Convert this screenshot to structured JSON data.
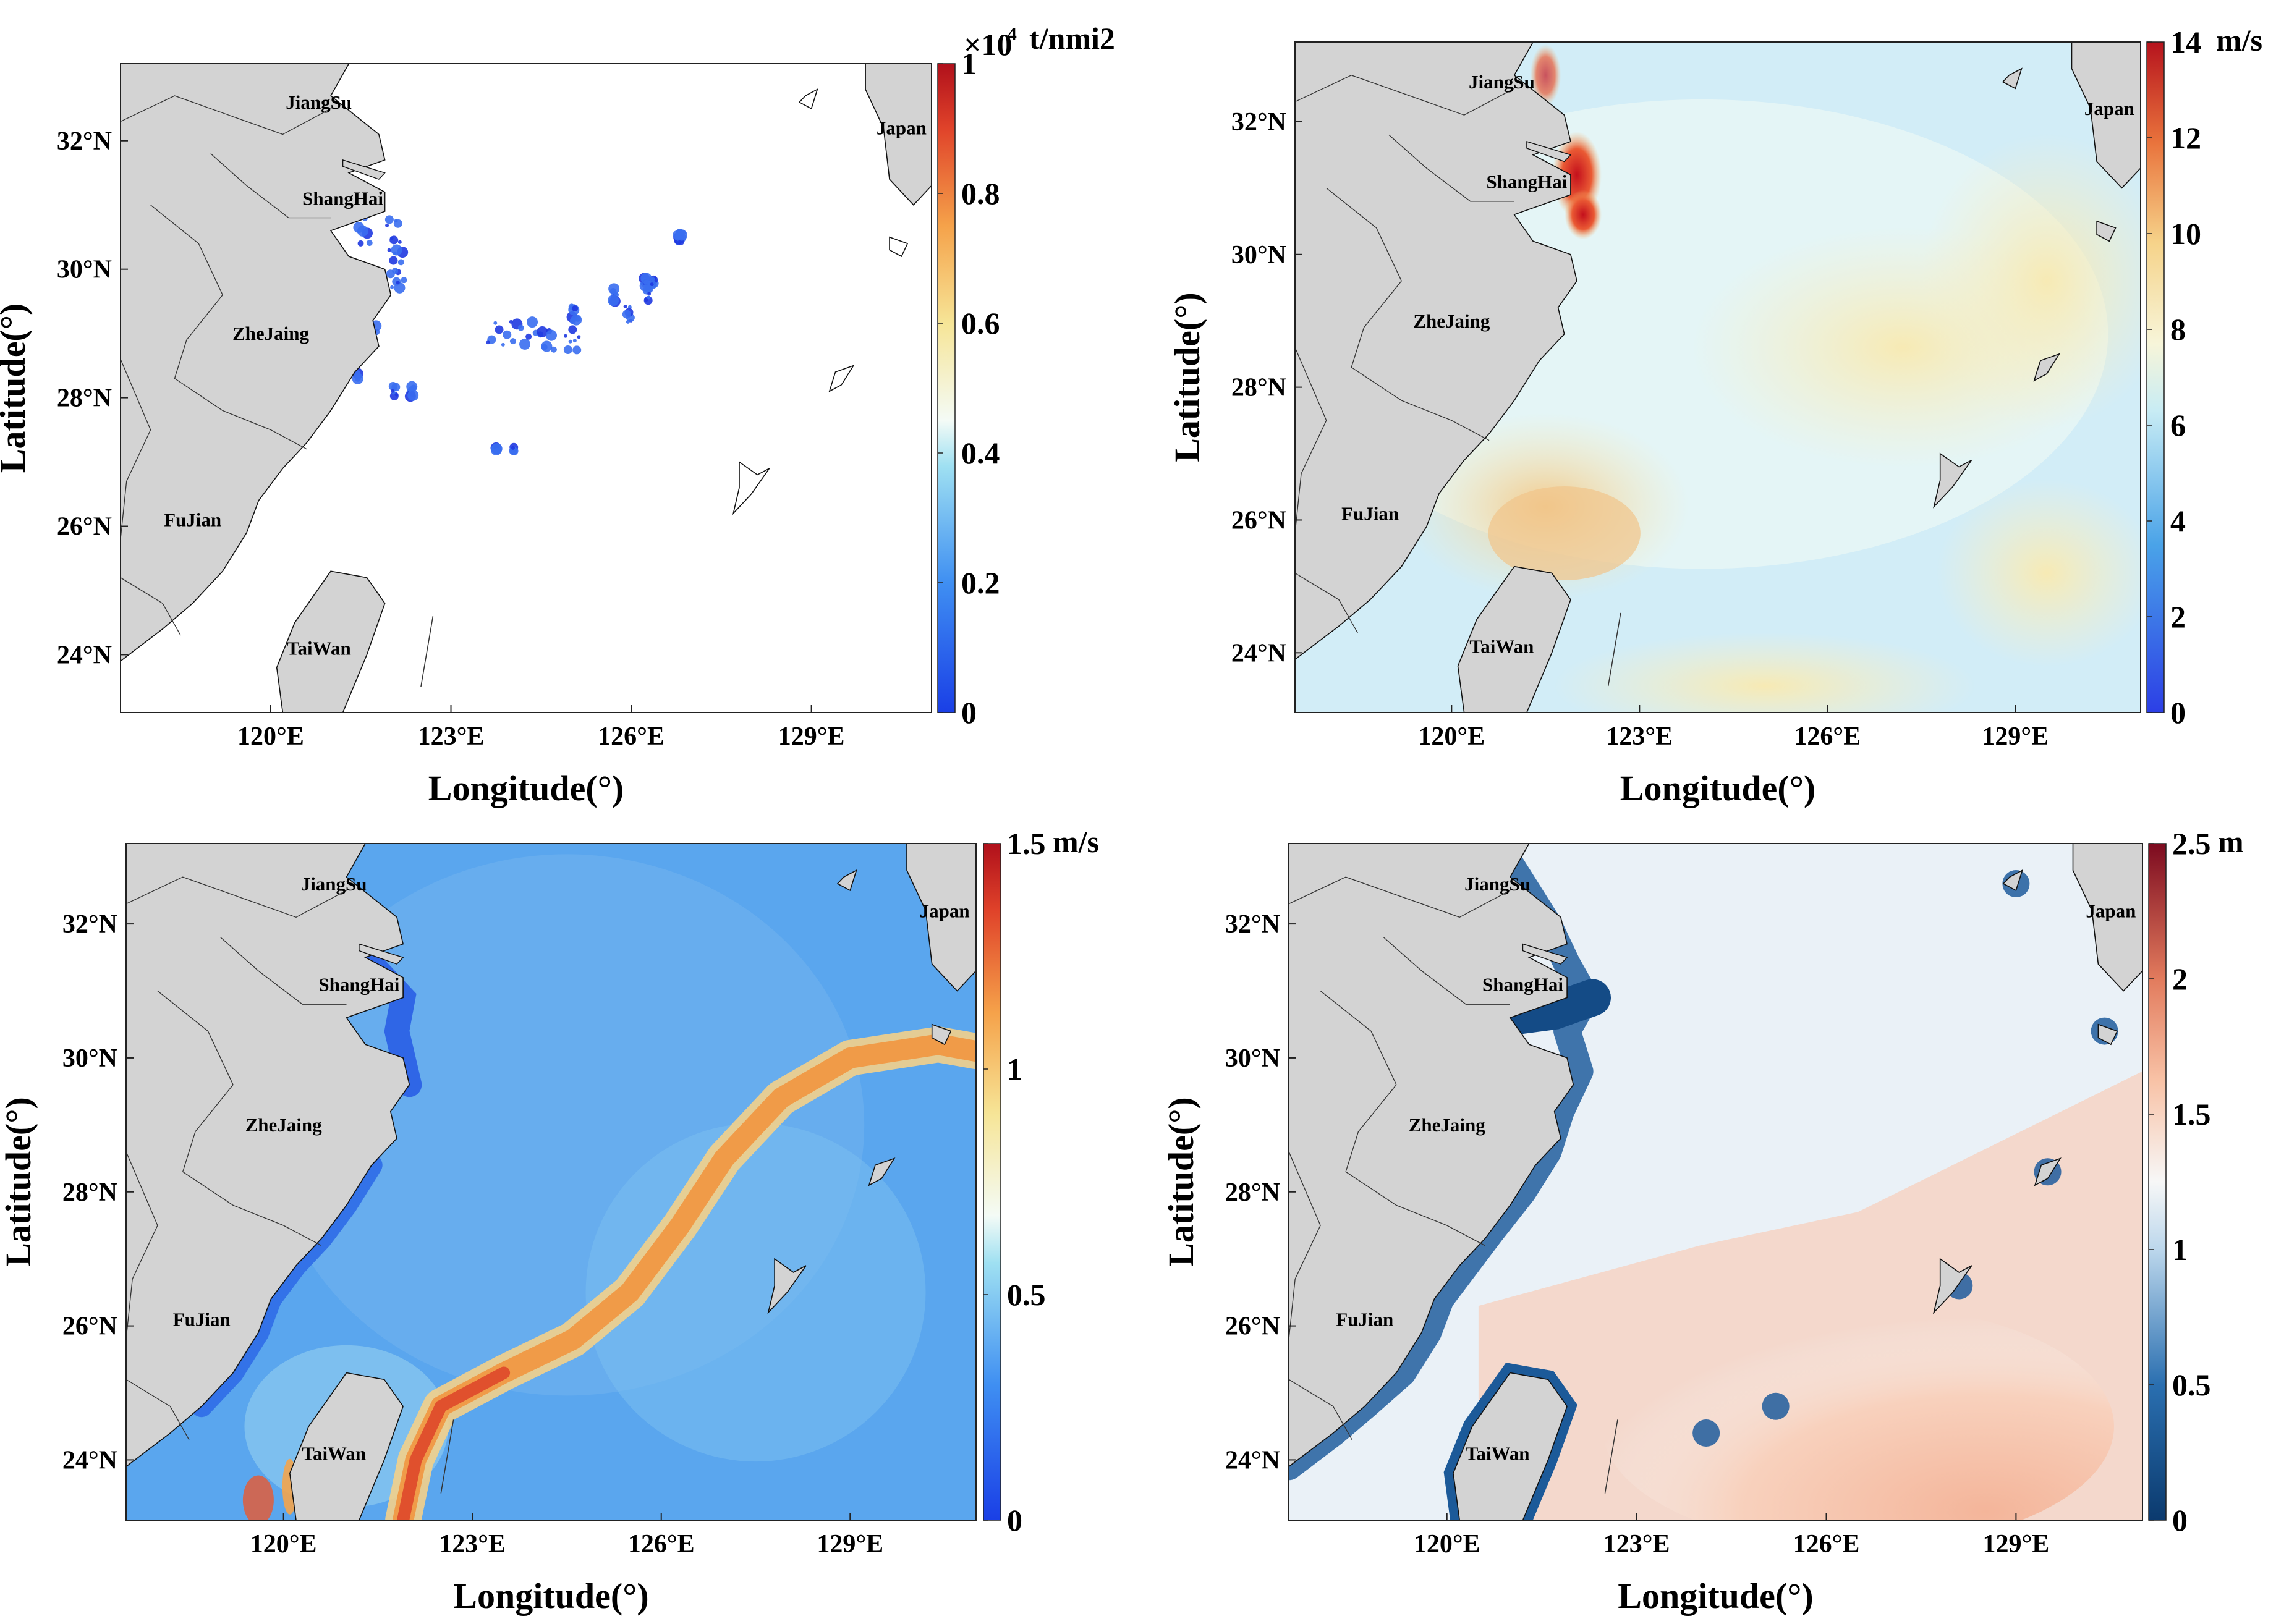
{
  "chart_data": [
    {
      "type": "heatmap",
      "xlabel": "Longitude(°)",
      "ylabel": "Latitude(°)",
      "xlim": [
        117.5,
        131.0
      ],
      "ylim": [
        23.1,
        33.2
      ],
      "xtick_values": [
        120,
        123,
        126,
        129
      ],
      "xtick_labels": [
        "120°E",
        "123°E",
        "126°E",
        "129°E"
      ],
      "ytick_values": [
        24,
        26,
        28,
        30,
        32
      ],
      "ytick_labels": [
        "24°N",
        "26°N",
        "28°N",
        "30°N",
        "32°N"
      ],
      "colorbar": {
        "unit": "t/nmi2",
        "multiplier": "×10",
        "multiplier_exponent": "-4",
        "range": [
          0,
          1
        ],
        "tick_values": [
          0,
          0.2,
          0.4,
          0.6,
          0.8,
          1
        ],
        "tick_labels": [
          "0",
          "0.2",
          "0.4",
          "0.6",
          "0.8",
          "1"
        ],
        "colormap": "jet"
      },
      "region_labels": [
        {
          "text": "JiangSu",
          "lon": 120.8,
          "lat": 32.5
        },
        {
          "text": "ShangHai",
          "lon": 121.2,
          "lat": 31.0
        },
        {
          "text": "ZheJaing",
          "lon": 120.0,
          "lat": 28.9
        },
        {
          "text": "FuJian",
          "lon": 118.7,
          "lat": 26.0
        },
        {
          "text": "TaiWan",
          "lon": 120.8,
          "lat": 24.0
        },
        {
          "text": "Japan",
          "lon": 130.5,
          "lat": 32.1
        }
      ],
      "data_note": "Sparse low values (blue) concentrated near 28.8–29.6°N, 123.5–126.3°E and along the ZheJiang coast; elsewhere empty"
    },
    {
      "type": "heatmap",
      "xlabel": "Longitude(°)",
      "ylabel": "Latitude(°)",
      "xlim": [
        117.5,
        131.0
      ],
      "ylim": [
        23.1,
        33.2
      ],
      "xtick_values": [
        120,
        123,
        126,
        129
      ],
      "xtick_labels": [
        "120°E",
        "123°E",
        "126°E",
        "129°E"
      ],
      "ytick_values": [
        24,
        26,
        28,
        30,
        32
      ],
      "ytick_labels": [
        "24°N",
        "26°N",
        "28°N",
        "30°N",
        "32°N"
      ],
      "colorbar": {
        "unit": "m/s",
        "range": [
          0,
          14
        ],
        "tick_values": [
          0,
          2,
          4,
          6,
          8,
          10,
          12,
          14
        ],
        "tick_labels": [
          "0",
          "2",
          "4",
          "6",
          "8",
          "10",
          "12",
          "14"
        ],
        "colormap": "blue-white-red"
      },
      "region_labels": [
        {
          "text": "JiangSu",
          "lon": 120.8,
          "lat": 32.5
        },
        {
          "text": "ShangHai",
          "lon": 121.2,
          "lat": 31.0
        },
        {
          "text": "ZheJaing",
          "lon": 120.0,
          "lat": 28.9
        },
        {
          "text": "FuJian",
          "lon": 118.7,
          "lat": 26.0
        },
        {
          "text": "TaiWan",
          "lon": 120.8,
          "lat": 24.0
        },
        {
          "text": "Japan",
          "lon": 130.5,
          "lat": 32.1
        }
      ],
      "data_note": "Values ~4–8 m/s over the sea; maxima ~8–9 near 26°N off FuJian and in a band from 28°N,124°E to 30.5°N,130°E; peaks ~14 near Shanghai estuary"
    },
    {
      "type": "heatmap",
      "xlabel": "Longitude(°)",
      "ylabel": "Latitude(°)",
      "xlim": [
        117.5,
        131.0
      ],
      "ylim": [
        23.1,
        33.2
      ],
      "xtick_values": [
        120,
        123,
        126,
        129
      ],
      "xtick_labels": [
        "120°E",
        "123°E",
        "126°E",
        "129°E"
      ],
      "ytick_values": [
        24,
        26,
        28,
        30,
        32
      ],
      "ytick_labels": [
        "24°N",
        "26°N",
        "28°N",
        "30°N",
        "32°N"
      ],
      "colorbar": {
        "unit": "m/s",
        "range": [
          0,
          1.5
        ],
        "tick_values": [
          0,
          0.5,
          1,
          1.5
        ],
        "tick_labels": [
          "0",
          "0.5",
          "1",
          "1.5"
        ],
        "colormap": "jet"
      },
      "region_labels": [
        {
          "text": "JiangSu",
          "lon": 120.8,
          "lat": 32.5
        },
        {
          "text": "ShangHai",
          "lon": 121.2,
          "lat": 31.0
        },
        {
          "text": "ZheJaing",
          "lon": 120.0,
          "lat": 28.9
        },
        {
          "text": "FuJian",
          "lon": 118.7,
          "lat": 26.0
        },
        {
          "text": "TaiWan",
          "lon": 120.8,
          "lat": 24.0
        },
        {
          "text": "Japan",
          "lon": 130.5,
          "lat": 32.1
        }
      ],
      "data_note": "Background ~0.2–0.4 m/s; Kuroshio band ~1.0–1.3 m/s running from east of TaiWan (24.5°N,122°E) northeast to 30°N,130°E"
    },
    {
      "type": "heatmap",
      "xlabel": "Longitude(°)",
      "ylabel": "Latitude(°)",
      "xlim": [
        117.5,
        131.0
      ],
      "ylim": [
        23.1,
        33.2
      ],
      "xtick_values": [
        120,
        123,
        126,
        129
      ],
      "xtick_labels": [
        "120°E",
        "123°E",
        "126°E",
        "129°E"
      ],
      "ytick_values": [
        24,
        26,
        28,
        30,
        32
      ],
      "ytick_labels": [
        "24°N",
        "26°N",
        "28°N",
        "30°N",
        "32°N"
      ],
      "colorbar": {
        "unit": "m",
        "range": [
          0,
          2.5
        ],
        "tick_values": [
          0,
          0.5,
          1,
          1.5,
          2,
          2.5
        ],
        "tick_labels": [
          "0",
          "0.5",
          "1",
          "1.5",
          "2",
          "2.5"
        ],
        "colormap": "blue-white-red"
      },
      "region_labels": [
        {
          "text": "JiangSu",
          "lon": 120.8,
          "lat": 32.5
        },
        {
          "text": "ShangHai",
          "lon": 121.2,
          "lat": 31.0
        },
        {
          "text": "ZheJaing",
          "lon": 120.0,
          "lat": 28.9
        },
        {
          "text": "FuJian",
          "lon": 118.7,
          "lat": 26.0
        },
        {
          "text": "TaiWan",
          "lon": 120.8,
          "lat": 24.0
        },
        {
          "text": "Japan",
          "lon": 130.5,
          "lat": 32.1
        }
      ],
      "data_note": "Near-shore values ~0–0.5 m (dark blue); northern open sea ~1–1.2 m (white); southeastern sea ~1.5–1.8 m (light red)"
    }
  ]
}
